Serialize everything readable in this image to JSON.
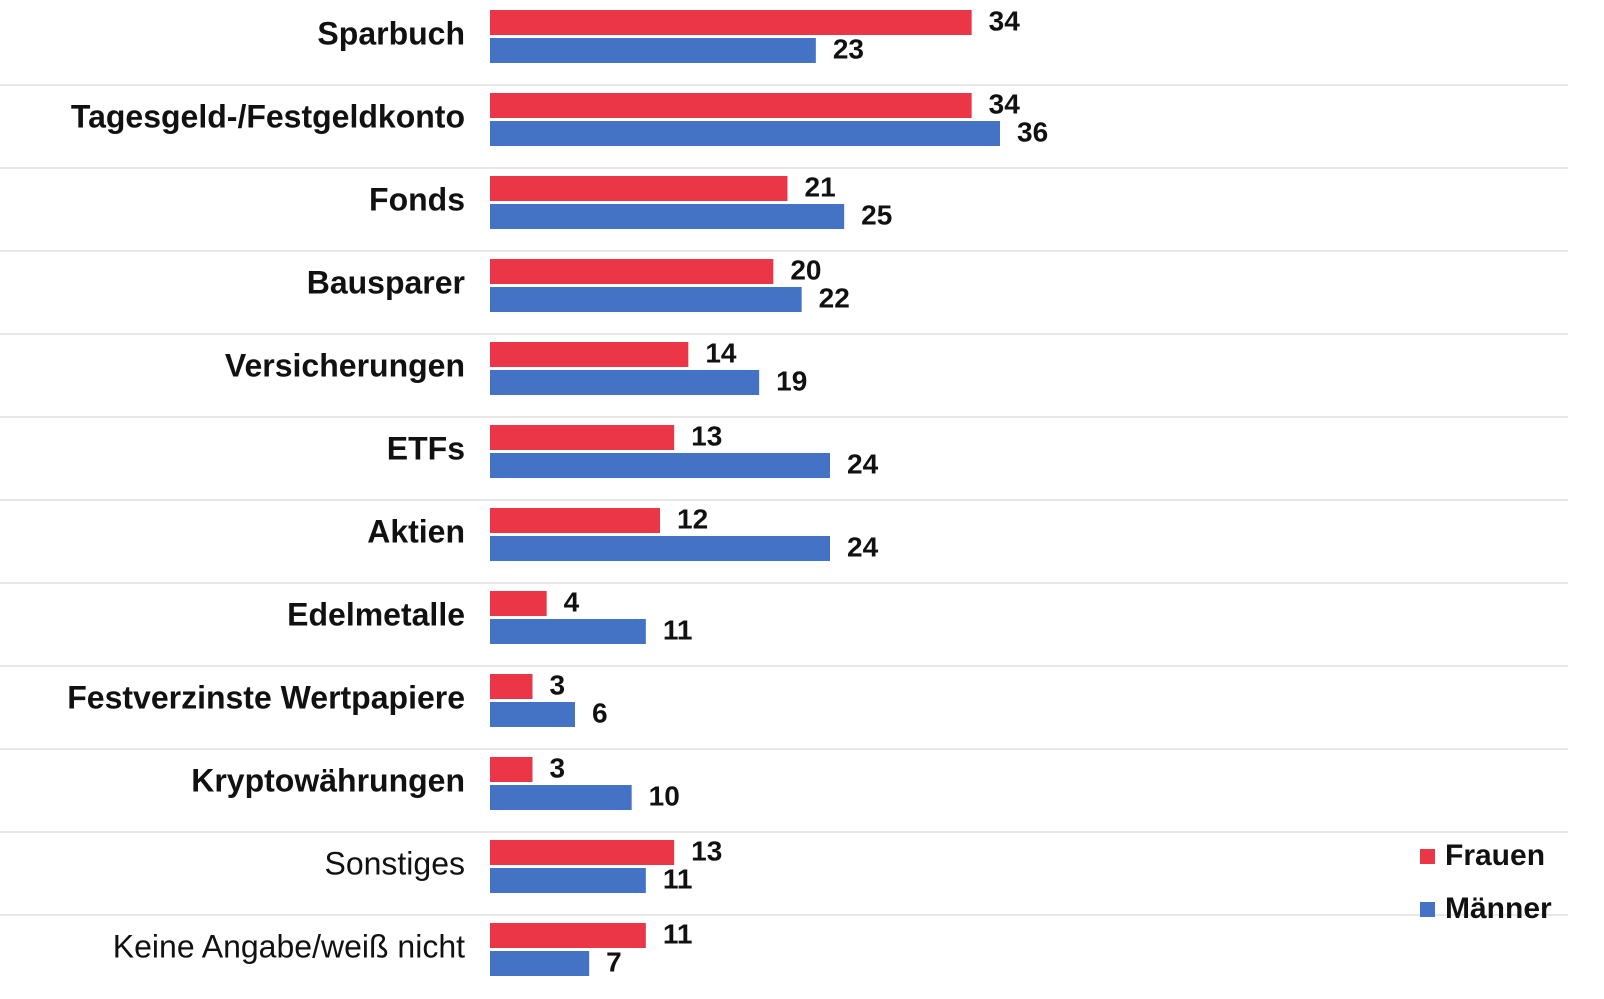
{
  "chart_data": {
    "type": "bar",
    "orientation": "horizontal",
    "categories": [
      "Sparbuch",
      "Tagesgeld-/Festgeldkonto",
      "Fonds",
      "Bausparer",
      "Versicherungen",
      "ETFs",
      "Aktien",
      "Edelmetalle",
      "Festverzinste Wertpapiere",
      "Kryptowährungen",
      "Sonstiges",
      "Keine Angabe/weiß nicht"
    ],
    "series": [
      {
        "name": "Frauen",
        "color": "#ea3646",
        "values": [
          34,
          34,
          21,
          20,
          14,
          13,
          12,
          4,
          3,
          3,
          13,
          11
        ]
      },
      {
        "name": "Männer",
        "color": "#4472c4",
        "values": [
          23,
          36,
          25,
          22,
          19,
          24,
          24,
          11,
          6,
          10,
          11,
          7
        ]
      }
    ],
    "legend": "bottom-right"
  }
}
